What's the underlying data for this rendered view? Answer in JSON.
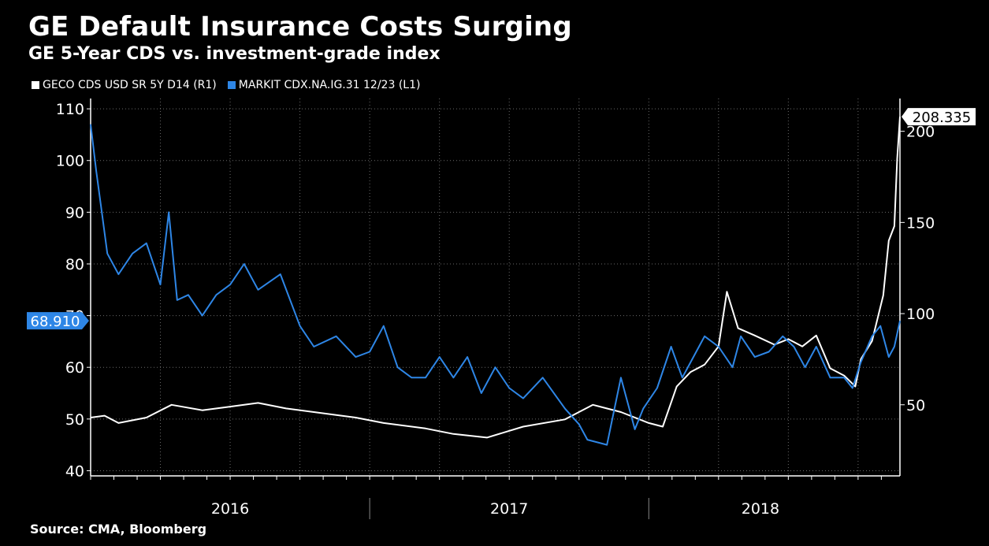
{
  "title": "GE Default Insurance Costs Surging",
  "subtitle": "GE 5-Year CDS vs. investment-grade index",
  "source": "Source: CMA, Bloomberg",
  "colors": {
    "ge": "#ffffff",
    "ig": "#2e86e6"
  },
  "chart_data": {
    "type": "line",
    "title": "GE Default Insurance Costs Surging",
    "subtitle": "GE 5-Year CDS vs. investment-grade index",
    "x_ticks": [
      "2016",
      "2017",
      "2018"
    ],
    "x_range": [
      2016.0,
      2018.9
    ],
    "left_axis": {
      "ticks": [
        40,
        50,
        60,
        70,
        80,
        90,
        100,
        110
      ],
      "range": [
        39,
        112
      ]
    },
    "right_axis": {
      "ticks": [
        50,
        100,
        150,
        200
      ],
      "range": [
        11,
        218
      ]
    },
    "legend_position": "top-left",
    "series": [
      {
        "name": "GECO CDS USD SR 5Y D14  (R1)",
        "axis": "right",
        "last_value": "208.335",
        "x": [
          2016.0,
          2016.05,
          2016.1,
          2016.2,
          2016.29,
          2016.4,
          2016.5,
          2016.6,
          2016.7,
          2016.8,
          2016.95,
          2017.05,
          2017.2,
          2017.3,
          2017.42,
          2017.55,
          2017.7,
          2017.8,
          2017.9,
          2018.0,
          2018.05,
          2018.1,
          2018.15,
          2018.2,
          2018.25,
          2018.28,
          2018.32,
          2018.38,
          2018.45,
          2018.5,
          2018.55,
          2018.6,
          2018.65,
          2018.7,
          2018.74,
          2018.76,
          2018.8,
          2018.84,
          2018.86,
          2018.88,
          2018.89,
          2018.9
        ],
        "values": [
          43,
          44,
          40,
          43,
          50,
          47,
          49,
          51,
          48,
          46,
          43,
          40,
          37,
          34,
          32,
          38,
          42,
          50,
          46,
          40,
          38,
          60,
          68,
          72,
          82,
          112,
          92,
          88,
          83,
          86,
          82,
          88,
          70,
          66,
          60,
          75,
          85,
          110,
          140,
          148,
          185,
          208
        ]
      },
      {
        "name": "MARKIT CDX.NA.IG.31 12/23  (L1)",
        "axis": "left",
        "last_value": "68.910",
        "x": [
          2016.0,
          2016.02,
          2016.04,
          2016.06,
          2016.1,
          2016.15,
          2016.2,
          2016.25,
          2016.28,
          2016.31,
          2016.35,
          2016.4,
          2016.45,
          2016.5,
          2016.55,
          2016.6,
          2016.68,
          2016.75,
          2016.8,
          2016.88,
          2016.95,
          2017.0,
          2017.05,
          2017.1,
          2017.15,
          2017.2,
          2017.25,
          2017.3,
          2017.35,
          2017.4,
          2017.45,
          2017.5,
          2017.55,
          2017.62,
          2017.7,
          2017.75,
          2017.78,
          2017.85,
          2017.9,
          2017.95,
          2017.98,
          2018.03,
          2018.08,
          2018.12,
          2018.16,
          2018.2,
          2018.25,
          2018.3,
          2018.33,
          2018.38,
          2018.43,
          2018.48,
          2018.52,
          2018.56,
          2018.6,
          2018.65,
          2018.7,
          2018.73,
          2018.76,
          2018.8,
          2018.83,
          2018.86,
          2018.88,
          2018.9
        ],
        "values": [
          107,
          98,
          90,
          82,
          78,
          82,
          84,
          76,
          90,
          73,
          74,
          70,
          74,
          76,
          80,
          75,
          78,
          68,
          64,
          66,
          62,
          63,
          68,
          60,
          58,
          58,
          62,
          58,
          62,
          55,
          60,
          56,
          54,
          58,
          52,
          49,
          46,
          45,
          58,
          48,
          52,
          56,
          64,
          58,
          62,
          66,
          64,
          60,
          66,
          62,
          63,
          66,
          64,
          60,
          64,
          58,
          58,
          56,
          61,
          66,
          68,
          62,
          64,
          69
        ]
      }
    ]
  }
}
